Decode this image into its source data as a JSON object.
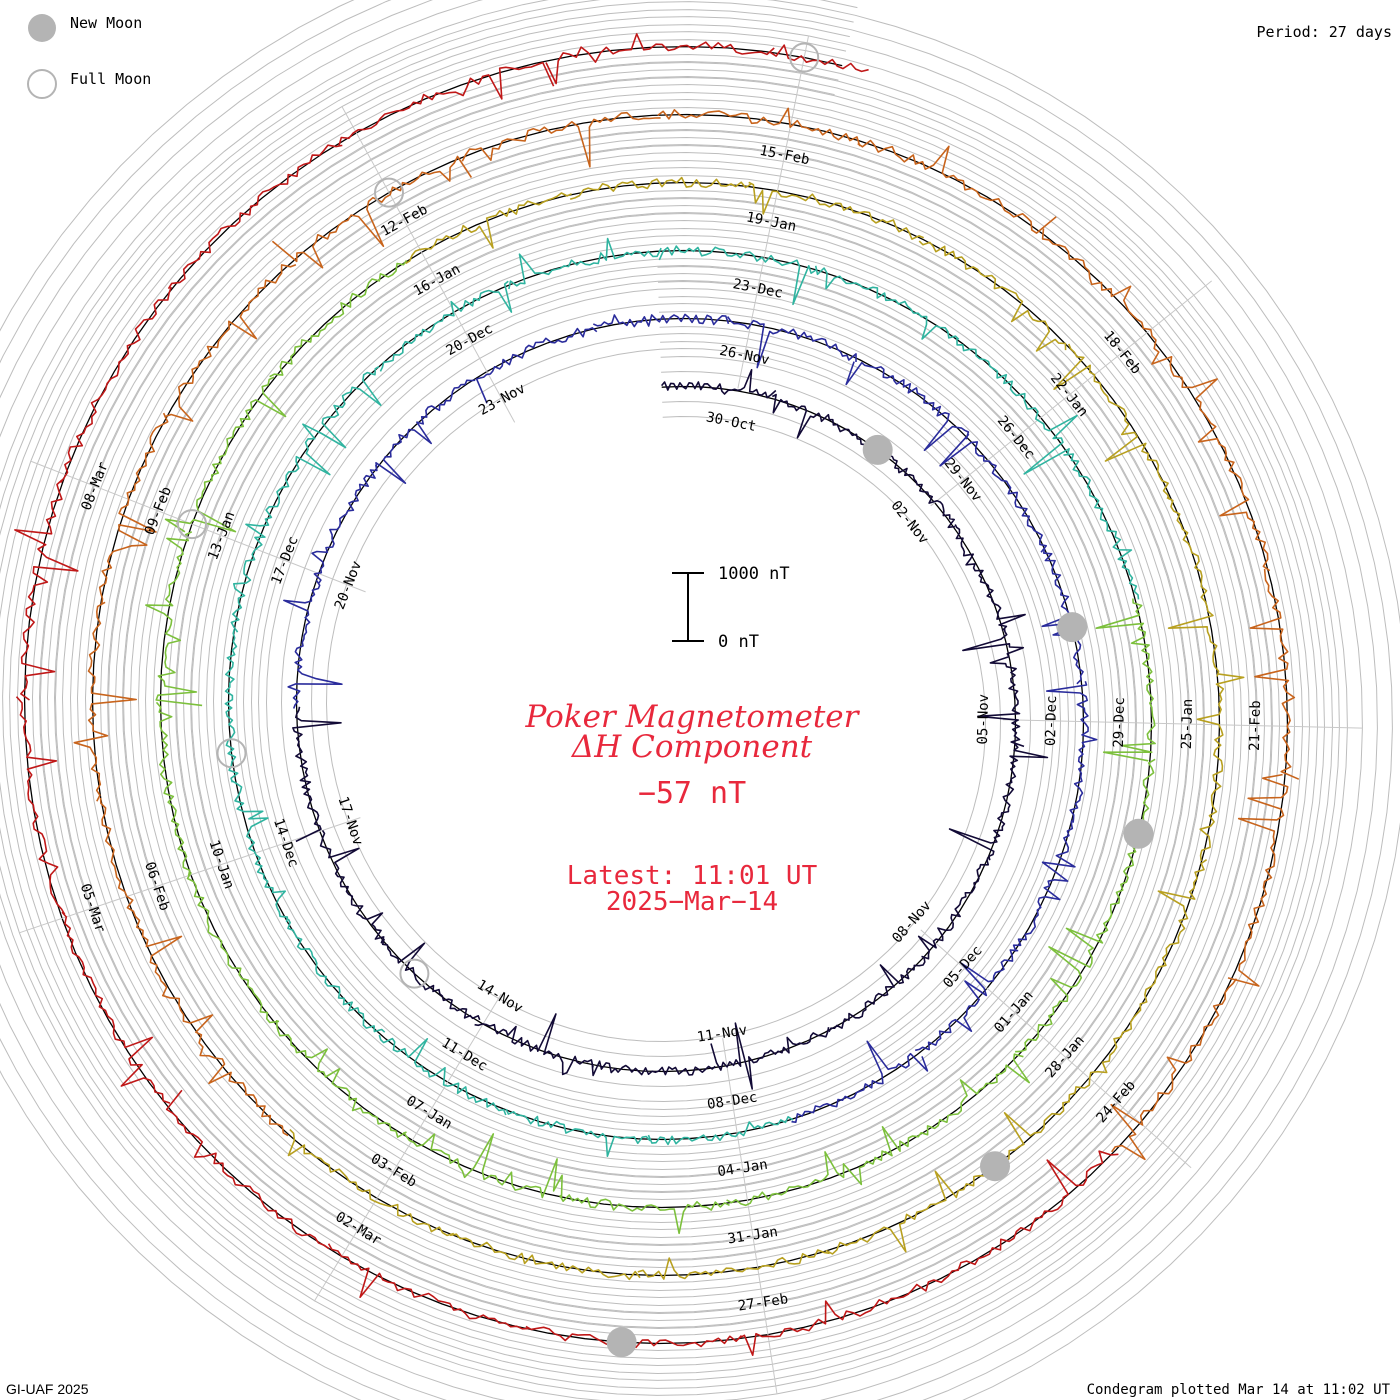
{
  "legend": {
    "new_moon_label": "New Moon",
    "full_moon_label": "Full Moon",
    "new_moon_color": "#b4b4b4",
    "full_moon_color": "#b4b4b4"
  },
  "period_label": "Period: 27 days",
  "footer": {
    "credit": "GI-UAF 2025",
    "plotted": "Condegram plotted Mar 14 at 11:02 UT"
  },
  "title": {
    "line1": "Poker Magnetometer",
    "line2": "ΔH Component",
    "value": "−57 nT",
    "latest": "Latest: 11:01 UT",
    "date": "2025−Mar−14",
    "color": "#e8283c"
  },
  "scale_bar": {
    "top_label": "1000 nT",
    "bottom_label": "0 nT"
  },
  "chart_data": {
    "type": "line",
    "subtype": "condegram (spiral time series)",
    "period_days": 27,
    "quantity": "ΔH",
    "unit": "nT",
    "start": "2024-10-29",
    "end": "2025-03-14",
    "series": [
      {
        "start": "2024-10-29",
        "end": "2024-11-22",
        "color": "#1c1440"
      },
      {
        "start": "2024-11-22",
        "end": "2024-12-19",
        "color": "#2a2c9c"
      },
      {
        "start": "2024-12-19",
        "end": "2025-01-15",
        "color": "#3ab49c"
      },
      {
        "start": "2025-01-15",
        "end": "2025-02-11",
        "color": "#6cc03c"
      },
      {
        "start": "2025-02-11",
        "end": "2025-03-14",
        "color": "#c8641c"
      }
    ],
    "spoke_dates": [
      [
        "30-Oct",
        "26-Nov",
        "23-Dec",
        "19-Jan",
        "15-Feb"
      ],
      [
        "02-Nov",
        "29-Nov",
        "26-Dec",
        "22-Jan",
        "18-Feb"
      ],
      [
        "05-Nov",
        "02-Dec",
        "29-Dec",
        "25-Jan",
        "21-Feb"
      ],
      [
        "08-Nov",
        "05-Dec",
        "01-Jan",
        "28-Jan",
        "24-Feb"
      ],
      [
        "11-Nov",
        "08-Dec",
        "04-Jan",
        "31-Jan",
        "27-Feb"
      ],
      [
        "14-Nov",
        "11-Dec",
        "07-Jan",
        "03-Feb",
        "02-Mar"
      ],
      [
        "17-Nov",
        "14-Dec",
        "10-Jan",
        "06-Feb",
        "05-Mar"
      ],
      [
        "20-Nov",
        "17-Dec",
        "13-Jan",
        "09-Feb",
        "08-Mar"
      ],
      [
        "23-Nov",
        "20-Dec",
        "16-Jan",
        "12-Feb"
      ]
    ],
    "new_moons": [
      "2024-11-01",
      "2024-12-01",
      "2024-12-30",
      "2025-01-29",
      "2025-02-28"
    ],
    "full_moons": [
      "2024-11-15",
      "2024-12-15",
      "2025-01-13",
      "2025-02-12",
      "2025-03-14"
    ],
    "latest_value_nT": -57,
    "scale_bar_nT": [
      0,
      1000
    ]
  }
}
